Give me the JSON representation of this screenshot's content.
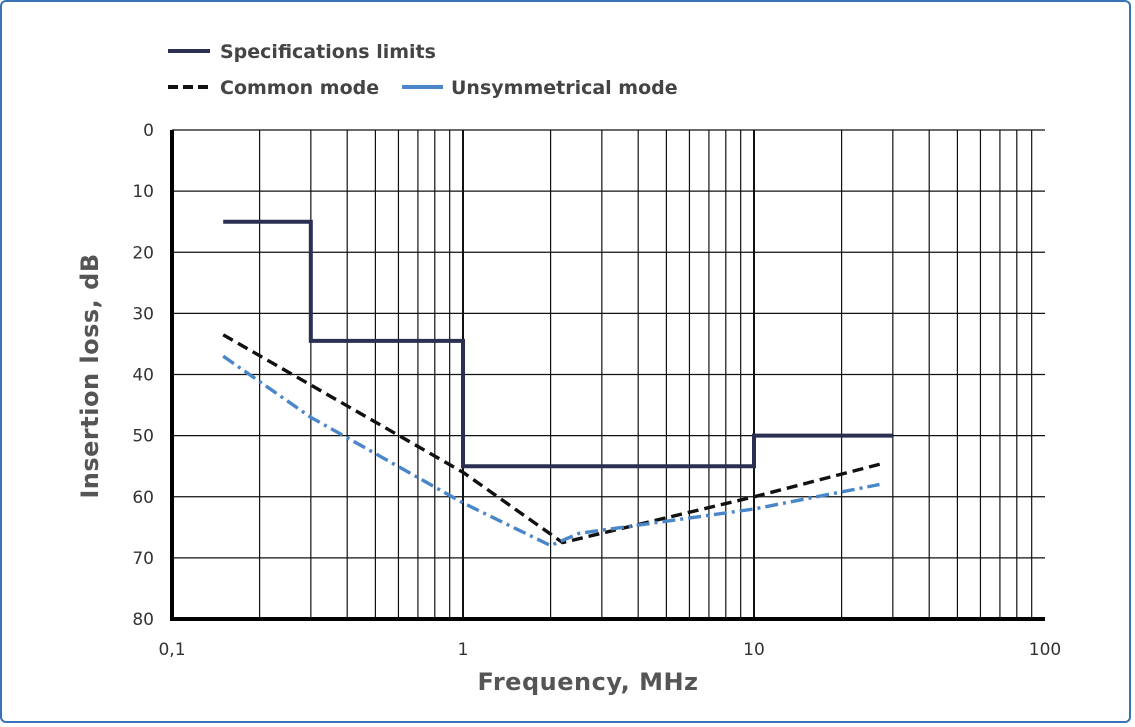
{
  "chart_data": {
    "type": "line",
    "xlabel": "Frequency, MHz",
    "ylabel": "Insertion loss, dB",
    "x_scale": "log",
    "xlim": [
      0.1,
      100
    ],
    "ylim": [
      0,
      80
    ],
    "y_inverted": true,
    "grid": true,
    "legend_position": "top-left",
    "x_tick_labels": [
      {
        "value": 0.1,
        "label": "0,1"
      },
      {
        "value": 1,
        "label": "1"
      },
      {
        "value": 10,
        "label": "10"
      },
      {
        "value": 100,
        "label": "100"
      }
    ],
    "y_tick_labels": [
      {
        "value": 0,
        "label": "0"
      },
      {
        "value": 10,
        "label": "10"
      },
      {
        "value": 20,
        "label": "20"
      },
      {
        "value": 30,
        "label": "30"
      },
      {
        "value": 40,
        "label": "40"
      },
      {
        "value": 50,
        "label": "50"
      },
      {
        "value": 60,
        "label": "60"
      },
      {
        "value": 70,
        "label": "70"
      },
      {
        "value": 80,
        "label": "80"
      }
    ],
    "series": [
      {
        "name": "Specifications limits",
        "style": "solid",
        "color": "#2b2f52",
        "points": [
          [
            0.15,
            15
          ],
          [
            0.3,
            15
          ],
          [
            0.3,
            34.5
          ],
          [
            1,
            34.5
          ],
          [
            1,
            55
          ],
          [
            10,
            55
          ],
          [
            10,
            50
          ],
          [
            30,
            50
          ]
        ]
      },
      {
        "name": "Common mode",
        "style": "dashed",
        "color": "#111111",
        "points": [
          [
            0.15,
            33.5
          ],
          [
            1,
            56
          ],
          [
            2.2,
            67.5
          ],
          [
            10,
            60
          ],
          [
            28,
            54.5
          ]
        ]
      },
      {
        "name": "Unsymmetrical mode",
        "style": "dashdot",
        "color": "#4a86c8",
        "points": [
          [
            0.15,
            37
          ],
          [
            0.3,
            47
          ],
          [
            1,
            61
          ],
          [
            2,
            68
          ],
          [
            2.5,
            66
          ],
          [
            10,
            62
          ],
          [
            27,
            58
          ]
        ]
      }
    ]
  }
}
